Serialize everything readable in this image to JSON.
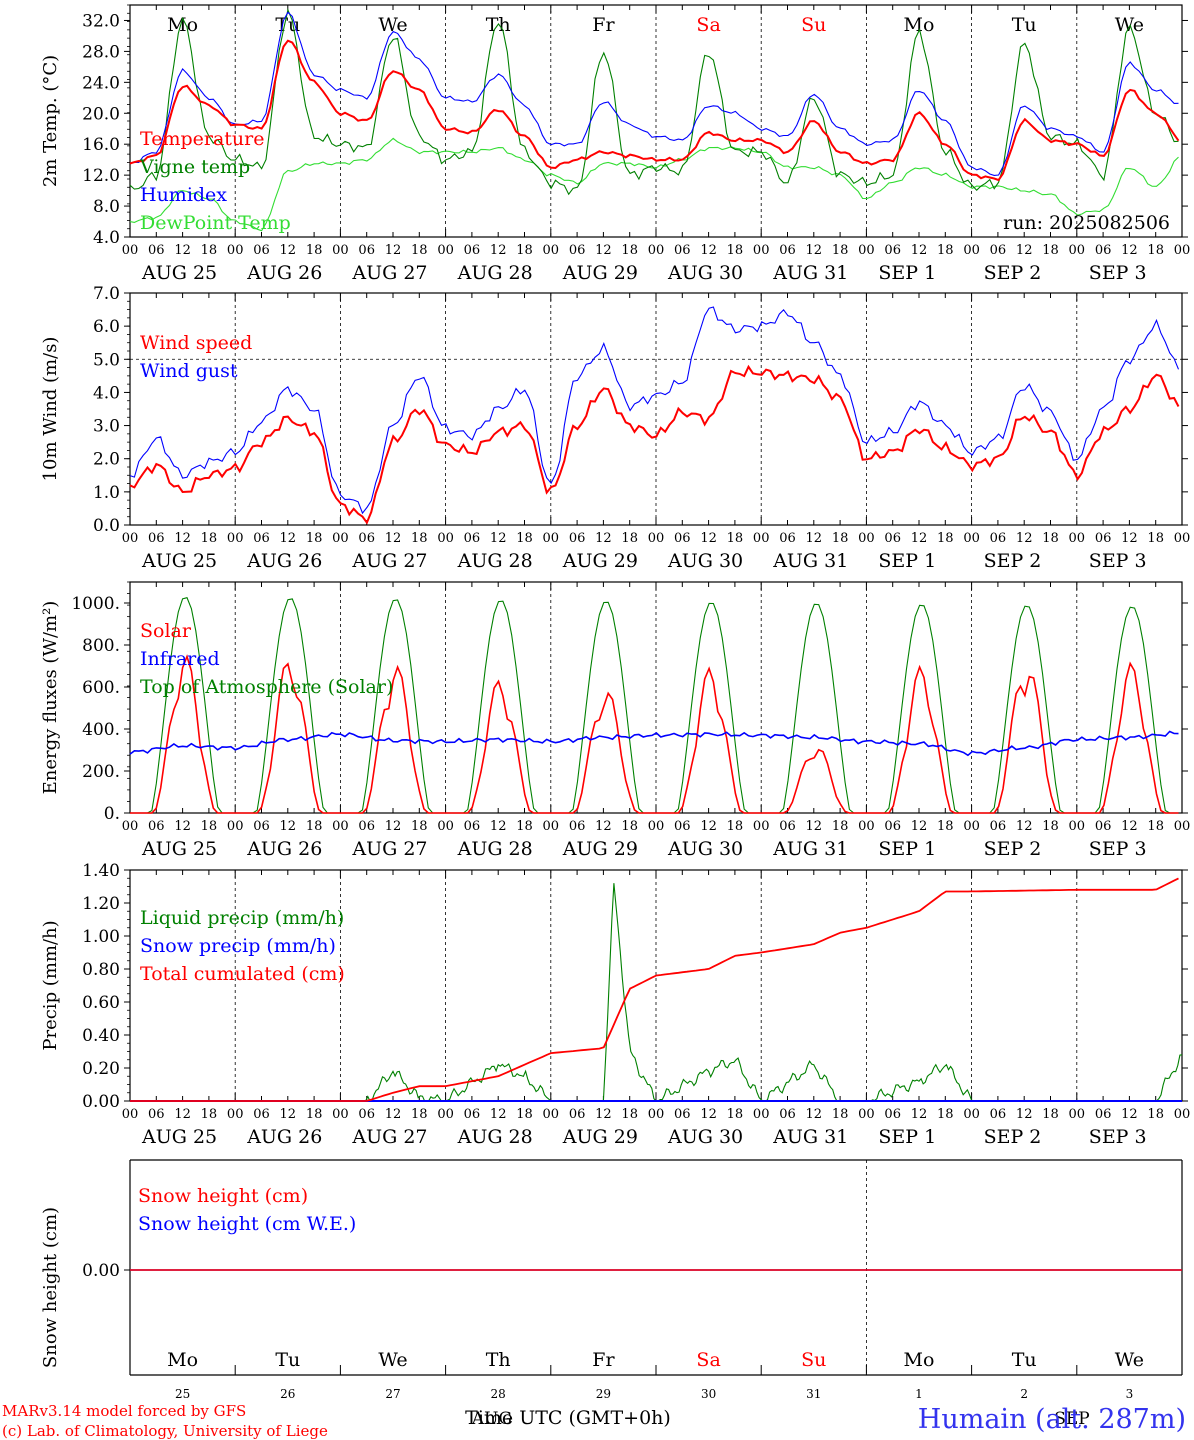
{
  "colors": {
    "red": "#ff0000",
    "green": "#008000",
    "blue": "#0000ff",
    "lightgreen": "#33dd33",
    "axis": "#000000"
  },
  "x_axis": {
    "hour_labels": [
      "00",
      "06",
      "12",
      "18"
    ],
    "final_hour_label": "00",
    "date_labels": [
      "AUG 25",
      "AUG 26",
      "AUG 27",
      "AUG 28",
      "AUG 29",
      "AUG 30",
      "AUG 31",
      "SEP  1",
      "SEP  2",
      "SEP  3"
    ],
    "weekdays": [
      "Mo",
      "Tu",
      "We",
      "Th",
      "Fr",
      "Sa",
      "Su",
      "Mo",
      "Tu",
      "We"
    ],
    "weekend_flags": [
      false,
      false,
      false,
      false,
      false,
      true,
      true,
      false,
      false,
      false
    ],
    "day_numbers": [
      "25",
      "26",
      "27",
      "28",
      "29",
      "30",
      "31",
      "1",
      "2",
      "3"
    ],
    "bottom_month_labels": [
      "AUG",
      "SEP"
    ],
    "time_label": "Time UTC (GMT+0h)"
  },
  "footer": {
    "credit_line_1": "MARv3.14 model forced by GFS",
    "credit_line_2": "(c) Lab. of Climatology, University of Liege",
    "station": "Humain (alt. 287m)"
  },
  "chart_data": [
    {
      "type": "line",
      "ylabel": "2m Temp. (°C)",
      "ylim": [
        4,
        34
      ],
      "yticks": [
        "4.0",
        "8.0",
        "12.0",
        "16.0",
        "20.0",
        "24.0",
        "28.0",
        "32.0"
      ],
      "annotation": "run: 2025082506",
      "x_unit": "day index from AUG 25 00 UTC (6-hourly steps)",
      "series": [
        {
          "name": "Temperature",
          "color": "red",
          "x": [
            0,
            0.25,
            0.5,
            0.75,
            1,
            1.25,
            1.5,
            1.75,
            2,
            2.25,
            2.5,
            2.75,
            3,
            3.25,
            3.5,
            3.75,
            4,
            4.25,
            4.5,
            4.75,
            5,
            5.25,
            5.5,
            5.75,
            6,
            6.25,
            6.5,
            6.75,
            7,
            7.25,
            7.5,
            7.75,
            8,
            8.25,
            8.5,
            8.75,
            9,
            9.25,
            9.5,
            9.75,
            10
          ],
          "y": [
            13.5,
            14.5,
            23.5,
            21,
            18.5,
            18,
            29.5,
            24,
            20,
            19,
            25.5,
            23,
            18,
            17.5,
            20.5,
            17,
            13,
            14,
            15,
            14.5,
            14,
            14,
            17.5,
            16.5,
            16.5,
            15,
            19,
            15,
            13.5,
            14,
            20,
            16,
            12,
            11.5,
            19,
            16.5,
            16,
            14.5,
            23,
            20,
            16.5
          ]
        },
        {
          "name": "Vigne temp",
          "color": "green",
          "x": [
            0,
            0.25,
            0.5,
            0.75,
            1,
            1.25,
            1.5,
            1.75,
            2,
            2.25,
            2.5,
            2.75,
            3,
            3.25,
            3.5,
            3.75,
            4,
            4.25,
            4.5,
            4.75,
            5,
            5.25,
            5.5,
            5.75,
            6,
            6.25,
            6.5,
            6.75,
            7,
            7.25,
            7.5,
            7.75,
            8,
            8.25,
            8.5,
            8.75,
            9,
            9.25,
            9.5,
            9.75,
            10
          ],
          "y": [
            10,
            12,
            32,
            17,
            14,
            13,
            33,
            17,
            16,
            15.5,
            30,
            17,
            14,
            15,
            32,
            15,
            11,
            10,
            28,
            12,
            13,
            12.5,
            28,
            15,
            15,
            11,
            22,
            12,
            11,
            12,
            30.5,
            15,
            10.5,
            11,
            29,
            17,
            16,
            12,
            31,
            20,
            16
          ]
        },
        {
          "name": "Humidex",
          "color": "blue",
          "x": [
            0,
            0.25,
            0.5,
            0.75,
            1,
            1.25,
            1.5,
            1.75,
            2,
            2.25,
            2.5,
            2.75,
            3,
            3.25,
            3.5,
            3.75,
            4,
            4.25,
            4.5,
            4.75,
            5,
            5.25,
            5.5,
            5.75,
            6,
            6.25,
            6.5,
            6.75,
            7,
            7.25,
            7.5,
            7.75,
            8,
            8.25,
            8.5,
            8.75,
            9,
            9.25,
            9.5,
            9.75,
            10
          ],
          "y": [
            13.5,
            15,
            25.5,
            22,
            18.5,
            19,
            33,
            25,
            23,
            22,
            30.5,
            27,
            22,
            21.5,
            25,
            21,
            16,
            16,
            21.5,
            18.5,
            17,
            16.5,
            21,
            20,
            18,
            17,
            22.5,
            18,
            16,
            16.5,
            23,
            19,
            13,
            12,
            21,
            18,
            17,
            15,
            26.5,
            23,
            21
          ]
        },
        {
          "name": "DewPoint Temp",
          "color": "lightgreen",
          "x": [
            0,
            0.25,
            0.5,
            0.75,
            1,
            1.25,
            1.5,
            1.75,
            2,
            2.25,
            2.5,
            2.75,
            3,
            3.25,
            3.5,
            3.75,
            4,
            4.25,
            4.5,
            4.75,
            5,
            5.25,
            5.5,
            5.75,
            6,
            6.25,
            6.5,
            6.75,
            7,
            7.25,
            7.5,
            7.75,
            8,
            8.25,
            8.5,
            8.75,
            9,
            9.25,
            9.5,
            9.75,
            10
          ],
          "y": [
            6,
            6.5,
            10,
            9,
            6,
            5,
            12.5,
            13.5,
            13.5,
            14,
            16.5,
            15,
            15,
            15,
            15.5,
            14,
            12,
            11,
            13.5,
            13.5,
            13,
            14,
            15.5,
            15.5,
            15,
            13,
            13,
            12,
            9,
            11,
            13,
            12,
            10.5,
            10.5,
            10,
            9.5,
            7,
            7.5,
            13,
            10.5,
            14.5
          ]
        }
      ]
    },
    {
      "type": "line",
      "ylabel": "10m Wind (m/s)",
      "ylim": [
        0,
        7
      ],
      "yticks": [
        "0.0",
        "1.0",
        "2.0",
        "3.0",
        "4.0",
        "5.0",
        "6.0",
        "7.0"
      ],
      "reference_line": 5.0,
      "x_unit": "day index from AUG 25 00 UTC (6-hourly steps)",
      "series": [
        {
          "name": "Wind speed",
          "color": "red",
          "x": [
            0,
            0.25,
            0.5,
            0.75,
            1,
            1.25,
            1.5,
            1.75,
            2,
            2.25,
            2.5,
            2.75,
            3,
            3.25,
            3.5,
            3.75,
            4,
            4.25,
            4.5,
            4.75,
            5,
            5.25,
            5.5,
            5.75,
            6,
            6.25,
            6.5,
            6.75,
            7,
            7.25,
            7.5,
            7.75,
            8,
            8.25,
            8.5,
            8.75,
            9,
            9.25,
            9.5,
            9.75,
            10
          ],
          "y": [
            1.2,
            1.8,
            1.0,
            1.5,
            1.7,
            2.5,
            3.2,
            2.8,
            0.6,
            0.2,
            2.5,
            3.5,
            2.4,
            2.2,
            2.8,
            3.0,
            1.0,
            3.0,
            4.1,
            3.0,
            2.7,
            3.4,
            3.2,
            4.6,
            4.6,
            4.5,
            4.4,
            3.8,
            2.0,
            2.2,
            2.9,
            2.3,
            1.8,
            2.0,
            3.3,
            2.8,
            1.5,
            2.8,
            3.5,
            4.5,
            3.5
          ]
        },
        {
          "name": "Wind gust",
          "color": "blue",
          "x": [
            0,
            0.25,
            0.5,
            0.75,
            1,
            1.25,
            1.5,
            1.75,
            2,
            2.25,
            2.5,
            2.75,
            3,
            3.25,
            3.5,
            3.75,
            4,
            4.25,
            4.5,
            4.75,
            5,
            5.25,
            5.5,
            5.75,
            6,
            6.25,
            6.5,
            6.75,
            7,
            7.25,
            7.5,
            7.75,
            8,
            8.25,
            8.5,
            8.75,
            9,
            9.25,
            9.5,
            9.75,
            10
          ],
          "y": [
            1.5,
            2.6,
            1.5,
            1.9,
            2.2,
            3.1,
            4.1,
            3.5,
            0.9,
            0.5,
            3.0,
            4.5,
            2.9,
            2.7,
            3.5,
            4.1,
            1.2,
            4.5,
            5.3,
            3.6,
            3.9,
            4.3,
            6.5,
            5.9,
            6.0,
            6.4,
            5.5,
            4.5,
            2.5,
            2.8,
            3.7,
            3.0,
            2.2,
            2.6,
            4.2,
            3.4,
            2.0,
            3.5,
            5.0,
            6.0,
            4.6
          ]
        }
      ]
    },
    {
      "type": "line",
      "ylabel": "Energy fluxes (W/m²)",
      "ylim": [
        0,
        1100
      ],
      "yticks": [
        "0.",
        "200.",
        "400.",
        "600.",
        "800.",
        "1000."
      ],
      "x_unit": "day index from AUG 25 00 UTC (6-hourly steps)",
      "series": [
        {
          "name": "Solar",
          "color": "red",
          "daily_peaks": [
            760,
            755,
            720,
            650,
            605,
            700,
            330,
            700,
            740,
            715
          ]
        },
        {
          "name": "Infrared",
          "color": "blue",
          "x": [
            0,
            0.5,
            1,
            1.5,
            2,
            2.5,
            3,
            3.5,
            4,
            4.5,
            5,
            5.5,
            6,
            6.5,
            7,
            7.5,
            8,
            8.5,
            9,
            9.5,
            10
          ],
          "y": [
            290,
            320,
            310,
            350,
            375,
            345,
            340,
            350,
            340,
            360,
            370,
            375,
            370,
            360,
            340,
            330,
            285,
            310,
            350,
            360,
            380
          ]
        },
        {
          "name": "Top of Atmosphere (Solar)",
          "color": "green",
          "daily_peaks": [
            1030,
            1025,
            1020,
            1015,
            1010,
            1005,
            1000,
            995,
            990,
            985
          ]
        }
      ]
    },
    {
      "type": "line",
      "ylabel": "Precip (mm/h)",
      "ylim": [
        0,
        1.4
      ],
      "yticks": [
        "0.00",
        "0.20",
        "0.40",
        "0.60",
        "0.80",
        "1.00",
        "1.20",
        "1.40"
      ],
      "x_unit": "day index from AUG 25 00 UTC (6-hourly steps)",
      "series": [
        {
          "name": "Liquid precip (mm/h)",
          "color": "green",
          "x": [
            0,
            2.25,
            2.5,
            2.75,
            3.0,
            3.5,
            3.75,
            4.0,
            4.5,
            4.6,
            4.75,
            5.0,
            5.5,
            5.75,
            6.0,
            6.5,
            6.75,
            7.0,
            7.5,
            7.75,
            8.0,
            9.75,
            10
          ],
          "y": [
            0,
            0,
            0.18,
            0.02,
            0,
            0.22,
            0.15,
            0,
            0,
            1.32,
            0.3,
            0,
            0.18,
            0.25,
            0,
            0.22,
            0,
            0,
            0.12,
            0.22,
            0,
            0,
            0.28
          ]
        },
        {
          "name": "Snow precip (mm/h)",
          "color": "blue",
          "x": [
            0,
            10
          ],
          "y": [
            0,
            0
          ]
        },
        {
          "name": "Total cumulated (cm)",
          "color": "red",
          "x": [
            0,
            2.25,
            2.5,
            2.75,
            3.0,
            3.5,
            3.75,
            4.0,
            4.5,
            4.75,
            5.0,
            5.5,
            5.75,
            6.0,
            6.5,
            6.75,
            7.0,
            7.5,
            7.75,
            8.0,
            9.0,
            9.75,
            10
          ],
          "y": [
            0,
            0,
            0.05,
            0.09,
            0.09,
            0.15,
            0.22,
            0.29,
            0.32,
            0.68,
            0.76,
            0.8,
            0.88,
            0.9,
            0.95,
            1.02,
            1.05,
            1.15,
            1.27,
            1.27,
            1.28,
            1.28,
            1.36
          ]
        }
      ]
    },
    {
      "type": "line",
      "ylabel": "Snow height (cm)",
      "yticks": [
        "0.00"
      ],
      "x_unit": "day index from AUG 25 00 UTC",
      "series": [
        {
          "name": "Snow height (cm)",
          "color": "red",
          "x": [
            0,
            10
          ],
          "y": [
            0,
            0
          ]
        },
        {
          "name": "Snow height (cm W.E.)",
          "color": "blue",
          "x": [
            0,
            10
          ],
          "y": [
            0,
            0
          ]
        }
      ]
    }
  ]
}
